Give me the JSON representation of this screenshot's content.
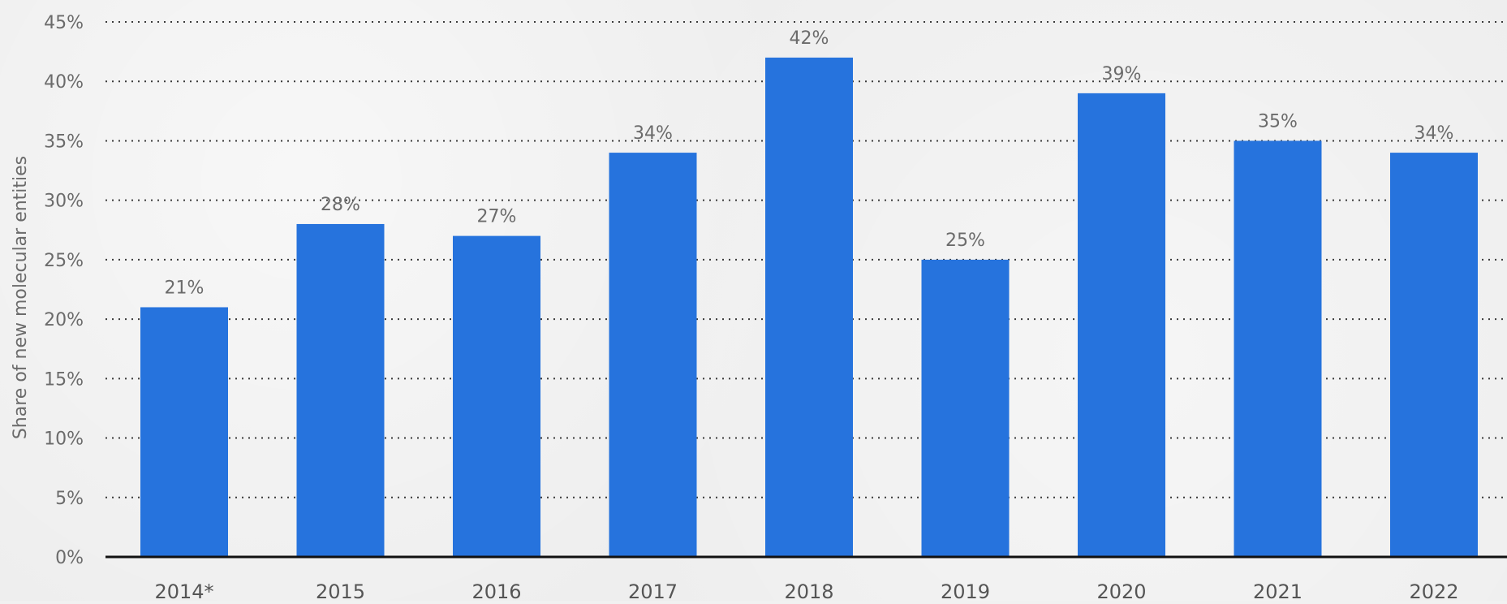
{
  "chart_data": {
    "type": "bar",
    "title": "",
    "xlabel": "",
    "ylabel": "Share of new molecular entities",
    "categories": [
      "2014*",
      "2015",
      "2016",
      "2017",
      "2018",
      "2019",
      "2020",
      "2021",
      "2022"
    ],
    "values": [
      21,
      28,
      27,
      34,
      42,
      25,
      39,
      35,
      34
    ],
    "data_labels": [
      "21%",
      "28%",
      "27%",
      "34%",
      "42%",
      "25%",
      "39%",
      "35%",
      "34%"
    ],
    "ylim": [
      0,
      45
    ],
    "y_ticks": [
      {
        "value": 0,
        "label": "0%"
      },
      {
        "value": 5,
        "label": "5%"
      },
      {
        "value": 10,
        "label": "10%"
      },
      {
        "value": 15,
        "label": "15%"
      },
      {
        "value": 20,
        "label": "20%"
      },
      {
        "value": 25,
        "label": "25%"
      },
      {
        "value": 30,
        "label": "30%"
      },
      {
        "value": 35,
        "label": "35%"
      },
      {
        "value": 40,
        "label": "40%"
      },
      {
        "value": 45,
        "label": "45%"
      }
    ],
    "grid": true,
    "bar_color": "#2673dd"
  }
}
